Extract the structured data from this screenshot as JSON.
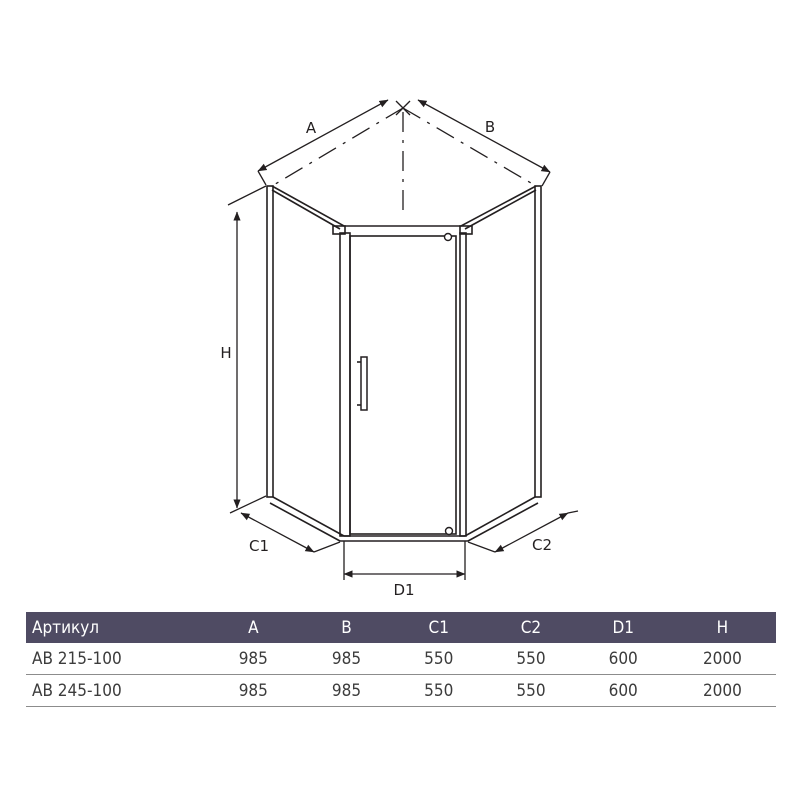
{
  "colors": {
    "line": "#231f20",
    "header_bg": "#4f4b63",
    "header_text": "#ffffff",
    "row_text": "#3c3c3c",
    "row_border": "#8c8c8c"
  },
  "diagram": {
    "labels": {
      "a": "A",
      "b": "B",
      "h": "H",
      "c1": "C1",
      "c2": "C2",
      "d1": "D1"
    }
  },
  "table": {
    "headers": [
      "Артикул",
      "A",
      "B",
      "C1",
      "C2",
      "D1",
      "H"
    ],
    "rows": [
      [
        "AB 215-100",
        "985",
        "985",
        "550",
        "550",
        "600",
        "2000"
      ],
      [
        "AB 245-100",
        "985",
        "985",
        "550",
        "550",
        "600",
        "2000"
      ]
    ]
  }
}
